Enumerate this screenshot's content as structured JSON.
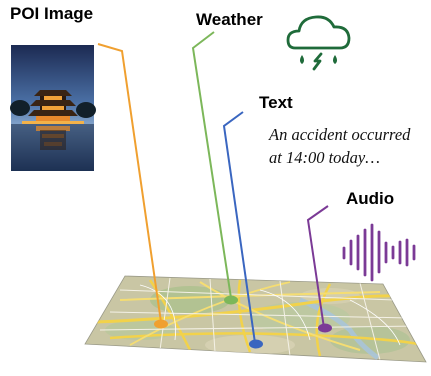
{
  "labels": {
    "poi_image": "POI Image",
    "weather": "Weather",
    "text": "Text",
    "audio": "Audio"
  },
  "text_content": {
    "line1": "An accident occurred",
    "line2": "at 14:00 today…"
  },
  "icons": {
    "poi_photo": "pagoda-photo-icon",
    "weather": "cloud-rain-lightning-icon",
    "audio": "sound-wave-icon"
  },
  "colors": {
    "poi_image": "#f0a030",
    "weather": "#7cb75a",
    "text": "#3a66c0",
    "audio": "#7b3a96",
    "weather_icon": "#1f6b3a"
  }
}
